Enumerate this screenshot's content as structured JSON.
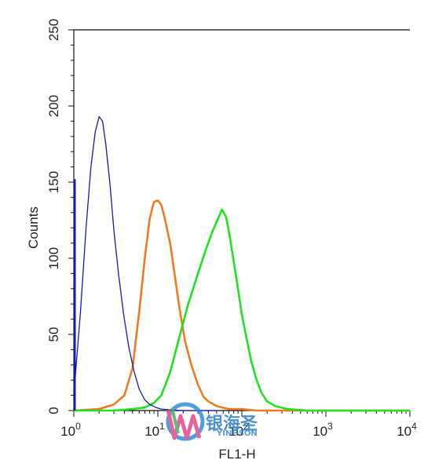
{
  "chart_data": {
    "type": "line",
    "title": "",
    "xlabel": "FL1-H",
    "ylabel": "Counts",
    "xscale": "log",
    "xlim": [
      1,
      10000
    ],
    "ylim": [
      0,
      250
    ],
    "grid": false,
    "legend": "none",
    "x_ticks": [
      {
        "base": "10",
        "exp": "0",
        "value": 1
      },
      {
        "base": "10",
        "exp": "1",
        "value": 10
      },
      {
        "base": "10",
        "exp": "2",
        "value": 100
      },
      {
        "base": "10",
        "exp": "3",
        "value": 1000
      },
      {
        "base": "10",
        "exp": "4",
        "value": 10000
      }
    ],
    "y_ticks": [
      "0",
      "50",
      "100",
      "150",
      "200",
      "250"
    ],
    "series": [
      {
        "color": "#1a1aa8",
        "x": [
          1.0,
          1.2,
          1.4,
          1.6,
          1.8,
          2.0,
          2.2,
          2.4,
          2.7,
          3.0,
          3.4,
          3.9,
          4.5,
          5.2,
          6.0,
          7.0,
          8.0,
          9.5,
          11,
          14,
          20,
          30,
          50
        ],
        "y": [
          10,
          65,
          120,
          160,
          183,
          193,
          190,
          175,
          148,
          118,
          90,
          64,
          42,
          26,
          14,
          7,
          4,
          2,
          1,
          0.5,
          0,
          0,
          0
        ]
      },
      {
        "color": "#f07a22",
        "x": [
          1,
          2,
          3,
          4,
          5,
          6,
          7,
          8,
          9,
          10,
          11,
          12,
          14,
          16,
          18,
          21,
          25,
          30,
          35,
          40,
          50,
          70,
          100,
          150,
          300,
          10000
        ],
        "y": [
          0,
          1,
          4,
          10,
          28,
          65,
          100,
          126,
          137,
          138,
          135,
          127,
          110,
          88,
          68,
          46,
          30,
          17,
          9,
          6,
          3,
          1,
          1,
          0,
          0,
          0
        ]
      },
      {
        "color": "#22e022",
        "x": [
          1,
          3,
          5,
          7,
          9,
          11,
          14,
          18,
          23,
          30,
          38,
          45,
          52,
          58,
          65,
          72,
          80,
          90,
          100,
          115,
          130,
          150,
          170,
          200,
          250,
          350,
          600,
          1000,
          10000
        ],
        "y": [
          0,
          0,
          1,
          2,
          5,
          10,
          25,
          48,
          70,
          90,
          107,
          118,
          126,
          132,
          127,
          114,
          98,
          80,
          63,
          46,
          32,
          20,
          12,
          6,
          3,
          1,
          0,
          0,
          0
        ]
      }
    ],
    "watermark": {
      "brand_cn": "银海圣",
      "brand_en": "YINHSON"
    }
  }
}
